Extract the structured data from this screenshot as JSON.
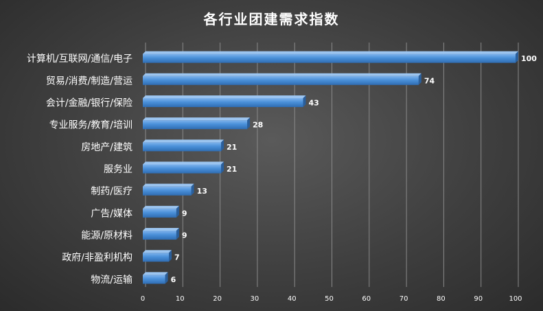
{
  "chart_data": {
    "type": "bar",
    "orientation": "horizontal",
    "title": "各行业团建需求指数",
    "categories": [
      "计算机/互联网/通信/电子",
      "贸易/消费/制造/营运",
      "会计/金融/银行/保险",
      "专业服务/教育/培训",
      "房地产/建筑",
      "服务业",
      "制药/医疗",
      "广告/媒体",
      "能源/原材料",
      "政府/非盈利机构",
      "物流/运输"
    ],
    "values": [
      100,
      74,
      43,
      28,
      21,
      21,
      13,
      9,
      9,
      7,
      6
    ],
    "xlim": [
      0,
      100
    ],
    "xticks": [
      "0",
      "10",
      "20",
      "30",
      "40",
      "50",
      "60",
      "70",
      "80",
      "90",
      "100"
    ],
    "grid": true,
    "bar_color": "#4a90d9"
  }
}
